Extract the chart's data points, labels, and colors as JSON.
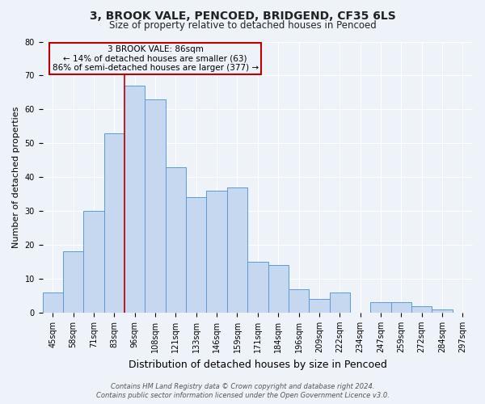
{
  "title": "3, BROOK VALE, PENCOED, BRIDGEND, CF35 6LS",
  "subtitle": "Size of property relative to detached houses in Pencoed",
  "xlabel": "Distribution of detached houses by size in Pencoed",
  "ylabel": "Number of detached properties",
  "categories": [
    "45sqm",
    "58sqm",
    "71sqm",
    "83sqm",
    "96sqm",
    "108sqm",
    "121sqm",
    "133sqm",
    "146sqm",
    "159sqm",
    "171sqm",
    "184sqm",
    "196sqm",
    "209sqm",
    "222sqm",
    "234sqm",
    "247sqm",
    "259sqm",
    "272sqm",
    "284sqm",
    "297sqm"
  ],
  "values": [
    6,
    18,
    30,
    53,
    67,
    63,
    43,
    34,
    36,
    37,
    15,
    14,
    7,
    4,
    6,
    0,
    3,
    3,
    2,
    1,
    0
  ],
  "bar_color": "#c5d8f0",
  "bar_edge_color": "#5b9bd5",
  "vline_color": "#c00000",
  "annotation_text": "3 BROOK VALE: 86sqm\n← 14% of detached houses are smaller (63)\n86% of semi-detached houses are larger (377) →",
  "annotation_box_color": "#c00000",
  "ylim": [
    0,
    80
  ],
  "yticks": [
    0,
    10,
    20,
    30,
    40,
    50,
    60,
    70,
    80
  ],
  "background_color": "#eef2f9",
  "footer_line1": "Contains HM Land Registry data © Crown copyright and database right 2024.",
  "footer_line2": "Contains public sector information licensed under the Open Government Licence v3.0.",
  "title_fontsize": 10,
  "subtitle_fontsize": 8.5,
  "xlabel_fontsize": 9,
  "ylabel_fontsize": 8,
  "tick_fontsize": 7,
  "footer_fontsize": 6,
  "vline_x": 3.5
}
